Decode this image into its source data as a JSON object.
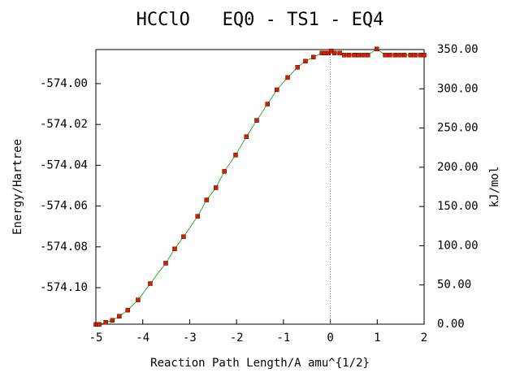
{
  "chart_data": {
    "type": "line",
    "title": "HCClO   EQ0 - TS1 - EQ4",
    "xlabel": "Reaction Path Length/A amu^{1/2}",
    "ylabel": "Energy/Hartree",
    "y2label": "kJ/mol",
    "xlim": [
      -5,
      2
    ],
    "xticks": [
      -5,
      -4,
      -3,
      -2,
      -1,
      0,
      1,
      2
    ],
    "ylim": [
      -574.1179,
      -573.9833
    ],
    "yticks": [
      {
        "value": -574.0,
        "label": "-574.00"
      },
      -574.02,
      -574.04,
      -574.06,
      -574.08,
      {
        "value": -574.1,
        "label": "-574.10"
      }
    ],
    "y2lim": [
      0,
      350
    ],
    "y2ticks": [
      {
        "value": 0,
        "label": "0.00"
      },
      {
        "value": 50,
        "label": "50.00"
      },
      {
        "value": 100,
        "label": "100.00"
      },
      {
        "value": 150,
        "label": "150.00"
      },
      {
        "value": 200,
        "label": "200.00"
      },
      {
        "value": 250,
        "label": "250.00"
      },
      {
        "value": 300,
        "label": "300.00"
      },
      {
        "value": 350,
        "label": "350.00"
      }
    ],
    "vline": 0,
    "series": [
      {
        "color": "#00a000",
        "marker_color": "#cc2200",
        "x": [
          -5.0,
          -4.97,
          -4.93,
          -4.79,
          -4.65,
          -4.5,
          -4.32,
          -4.1,
          -3.84,
          -3.51,
          -3.32,
          -3.13,
          -2.83,
          -2.64,
          -2.44,
          -2.26,
          -2.02,
          -1.79,
          -1.57,
          -1.34,
          -1.14,
          -0.91,
          -0.7,
          -0.53,
          -0.36,
          -0.18,
          -0.11,
          -0.04,
          0.02,
          0.09,
          0.2,
          0.3,
          0.4,
          0.51,
          0.6,
          0.7,
          0.8,
          0.99,
          1.17,
          1.27,
          1.38,
          1.48,
          1.58,
          1.71,
          1.81,
          1.92,
          2.0
        ],
        "values": [
          -574.118,
          -574.118,
          -574.118,
          -574.117,
          -574.116,
          -574.114,
          -574.111,
          -574.106,
          -574.098,
          -574.088,
          -574.081,
          -574.075,
          -574.065,
          -574.057,
          -574.051,
          -574.043,
          -574.035,
          -574.026,
          -574.018,
          -574.01,
          -574.003,
          -573.997,
          -573.992,
          -573.989,
          -573.987,
          -573.985,
          -573.985,
          -573.985,
          -573.984,
          -573.985,
          -573.985,
          -573.986,
          -573.986,
          -573.986,
          -573.986,
          -573.986,
          -573.986,
          -573.983,
          -573.986,
          -573.986,
          -573.986,
          -573.986,
          -573.986,
          -573.986,
          -573.986,
          -573.986,
          -573.986
        ]
      }
    ]
  }
}
